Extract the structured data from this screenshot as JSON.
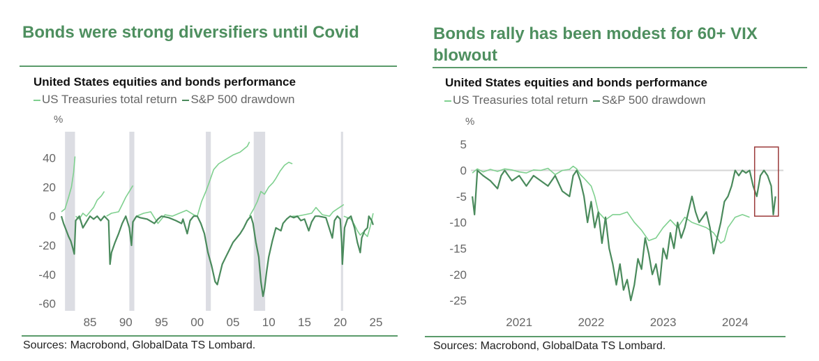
{
  "colors": {
    "headline": "#4e8f5f",
    "rule": "#5a9a6a",
    "treasuries": "#7fd08f",
    "sp500": "#4a8a5c",
    "recession": "#dcdde3",
    "zero_line": "#d6d6d6",
    "highlight_box": "#9b3a3a"
  },
  "left": {
    "headline": "Bonds were strong diversifiers until Covid",
    "chart_title": "United States equities and bonds performance",
    "legend": [
      {
        "label": "US Treasuries total return",
        "series": "treasuries"
      },
      {
        "label": "S&P 500 drawdown",
        "series": "sp500"
      }
    ],
    "unit": "%",
    "source": "Sources: Macrobond, GlobalData TS Lombard."
  },
  "right": {
    "headline": "Bonds rally has been modest for 60+ VIX blowout",
    "chart_title": "United States equities and bonds performance",
    "legend": [
      {
        "label": "US Treasuries total return",
        "series": "treasuries"
      },
      {
        "label": "S&P 500 drawdown",
        "series": "sp500"
      }
    ],
    "unit": "%",
    "source": "Sources: Macrobond, GlobalData TS Lombard."
  },
  "chart_data": [
    {
      "type": "line",
      "title": "United States equities and bonds performance",
      "ylabel": "%",
      "xlabel": "",
      "xlim": [
        1980.8,
        2025.2
      ],
      "ylim": [
        -65,
        58
      ],
      "yticks": [
        40,
        20,
        0,
        -20,
        -40,
        -60
      ],
      "xticks": [
        1985,
        1990,
        1995,
        2000,
        2005,
        2010,
        2015,
        2020,
        2025
      ],
      "xtick_labels": [
        "85",
        "90",
        "95",
        "00",
        "05",
        "10",
        "15",
        "20",
        "25"
      ],
      "legend_position": "top-left",
      "grid": false,
      "shaded_periods": [
        [
          1981.5,
          1982.9
        ],
        [
          1990.5,
          1991.2
        ],
        [
          2001.2,
          2001.9
        ],
        [
          2007.9,
          2009.5
        ],
        [
          2020.1,
          2020.4
        ]
      ],
      "series": [
        {
          "name": "US Treasuries total return",
          "key": "treasuries",
          "segments": [
            {
              "x": [
                1981.0,
                1981.5,
                1982.0,
                1982.4,
                1982.7,
                1982.9
              ],
              "y": [
                3,
                5,
                13,
                20,
                30,
                41
              ]
            },
            {
              "x": [
                1983.0,
                1983.5,
                1984.0,
                1984.5,
                1985.0,
                1985.5,
                1986.0,
                1986.6,
                1987.0
              ],
              "y": [
                0,
                -2,
                2,
                0,
                3,
                6,
                11,
                14,
                17
              ]
            },
            {
              "x": [
                1987.3,
                1988.0,
                1989.0,
                1989.5,
                1990.0,
                1990.5,
                1991.0
              ],
              "y": [
                0,
                2,
                3,
                8,
                13,
                17,
                21
              ]
            },
            {
              "x": [
                1991.5,
                1992.5,
                1993.5,
                1994.5,
                1995.5,
                1996.5,
                1997.5,
                1998.5,
                1999.5,
                2000.0
              ],
              "y": [
                0,
                2,
                3,
                -5,
                1,
                0,
                2,
                4,
                1,
                0
              ]
            },
            {
              "x": [
                2000.0,
                2000.6,
                2001.2,
                2001.8,
                2002.3,
                2003.0,
                2004.0,
                2005.0,
                2006.0,
                2007.0,
                2007.3
              ],
              "y": [
                0,
                10,
                17,
                25,
                32,
                36,
                39,
                42,
                44,
                48,
                51
              ]
            },
            {
              "x": [
                2007.3,
                2007.9,
                2008.4,
                2008.9,
                2009.4,
                2010.0,
                2010.6,
                2011.0,
                2011.6,
                2012.2,
                2012.8,
                2013.3
              ],
              "y": [
                0,
                5,
                10,
                17,
                15,
                20,
                23,
                26,
                31,
                35,
                37,
                36
              ]
            },
            {
              "x": [
                2013.3,
                2014.0,
                2015.0,
                2016.0,
                2016.6,
                2017.5,
                2018.5,
                2019.0,
                2019.6,
                2020.2,
                2020.5
              ],
              "y": [
                0,
                0,
                1,
                2,
                6,
                1,
                0,
                3,
                5,
                7,
                8
              ]
            },
            {
              "x": [
                2020.5,
                2021.0,
                2021.5,
                2022.0,
                2022.4,
                2022.8,
                2023.2,
                2023.8,
                2024.2,
                2024.6
              ],
              "y": [
                0,
                -1,
                -2,
                -6,
                -10,
                -13,
                -11,
                -14,
                -7,
                2
              ]
            }
          ]
        },
        {
          "name": "S&P 500 drawdown",
          "key": "sp500",
          "x": [
            1981.0,
            1981.3,
            1981.7,
            1982.0,
            1982.3,
            1982.6,
            1982.8,
            1983.0,
            1983.5,
            1984.0,
            1984.5,
            1985.0,
            1985.5,
            1986.0,
            1986.5,
            1987.0,
            1987.6,
            1987.8,
            1988.0,
            1988.5,
            1989.0,
            1989.5,
            1990.0,
            1990.5,
            1990.8,
            1991.0,
            1991.5,
            1992.0,
            1993.0,
            1994.0,
            1994.5,
            1995.0,
            1996.0,
            1997.0,
            1997.8,
            1998.0,
            1998.6,
            1999.0,
            1999.5,
            2000.0,
            2000.5,
            2001.0,
            2001.5,
            2002.0,
            2002.5,
            2002.8,
            2003.0,
            2003.5,
            2004.0,
            2004.5,
            2005.0,
            2006.0,
            2006.5,
            2007.0,
            2007.5,
            2007.8,
            2008.2,
            2008.6,
            2008.9,
            2009.2,
            2009.4,
            2009.7,
            2010.0,
            2010.5,
            2011.0,
            2011.7,
            2012.0,
            2012.5,
            2013.0,
            2013.5,
            2014.0,
            2014.5,
            2015.0,
            2015.6,
            2016.0,
            2016.5,
            2017.0,
            2018.0,
            2018.9,
            2019.2,
            2019.6,
            2020.0,
            2020.2,
            2020.3,
            2020.6,
            2021.0,
            2021.5,
            2022.0,
            2022.4,
            2022.8,
            2023.0,
            2023.4,
            2023.8,
            2024.0,
            2024.4,
            2024.6
          ],
          "y": [
            0,
            -5,
            -10,
            -14,
            -17,
            -22,
            -26,
            -3,
            0,
            -8,
            -4,
            0,
            -2,
            0,
            -3,
            0,
            -3,
            -33,
            -25,
            -18,
            -12,
            -5,
            0,
            -8,
            -20,
            -4,
            0,
            -1,
            -2,
            -5,
            -2,
            0,
            -1,
            -3,
            -5,
            -2,
            -12,
            -3,
            0,
            0,
            -5,
            -12,
            -25,
            -34,
            -45,
            -47,
            -43,
            -33,
            -28,
            -23,
            -18,
            -12,
            -8,
            -3,
            0,
            -5,
            -18,
            -28,
            -45,
            -55,
            -50,
            -38,
            -28,
            -17,
            -8,
            -10,
            -5,
            -2,
            0,
            -1,
            0,
            -3,
            -2,
            -10,
            -4,
            0,
            0,
            -1,
            -15,
            -3,
            0,
            -2,
            -18,
            -33,
            -8,
            -2,
            0,
            -8,
            -18,
            -25,
            -15,
            -10,
            -8,
            0,
            -3,
            -6
          ]
        }
      ]
    },
    {
      "type": "line",
      "title": "United States equities and bonds performance",
      "ylabel": "%",
      "xlabel": "",
      "xlim": [
        2020.33,
        2024.67
      ],
      "ylim": [
        -27,
        6.5
      ],
      "yticks": [
        5,
        0,
        -5,
        -10,
        -15,
        -20,
        -25
      ],
      "xticks": [
        2021,
        2022,
        2023,
        2024
      ],
      "xtick_labels": [
        "2021",
        "2022",
        "2023",
        "2024"
      ],
      "legend_position": "top-left",
      "grid": false,
      "zero_line": true,
      "highlight_box": {
        "x": [
          2024.27,
          2024.6
        ],
        "y": [
          -8.8,
          4.5
        ]
      },
      "series": [
        {
          "name": "US Treasuries total return",
          "key": "treasuries",
          "segments": [
            {
              "x": [
                2020.35,
                2020.42,
                2020.5,
                2020.6,
                2020.7,
                2020.8,
                2020.9,
                2021.0,
                2021.1,
                2021.2,
                2021.3,
                2021.4,
                2021.5,
                2021.6,
                2021.7,
                2021.75,
                2021.8,
                2021.85,
                2021.9,
                2022.0,
                2022.05,
                2022.1,
                2022.2,
                2022.3,
                2022.4,
                2022.5,
                2022.6,
                2022.7,
                2022.8,
                2022.9,
                2023.0,
                2023.1,
                2023.2,
                2023.3,
                2023.4,
                2023.5,
                2023.6,
                2023.7,
                2023.8,
                2023.85,
                2023.9,
                2024.0,
                2024.1,
                2024.2
              ],
              "y": [
                -0.5,
                0.3,
                -0.3,
                0.2,
                -0.2,
                0.3,
                0.1,
                -0.3,
                -0.5,
                0.1,
                0,
                0.4,
                -0.8,
                0,
                0.2,
                0.8,
                0.3,
                -0.8,
                -1.5,
                -3,
                -5,
                -8,
                -9.5,
                -8.5,
                -8.5,
                -8,
                -10,
                -11.5,
                -13.5,
                -13,
                -11,
                -9.5,
                -11,
                -9,
                -10,
                -10.5,
                -11,
                -12,
                -14,
                -13.5,
                -11,
                -9,
                -8.5,
                -9
              ]
            }
          ]
        },
        {
          "name": "S&P 500 drawdown",
          "key": "sp500",
          "x": [
            2020.35,
            2020.38,
            2020.42,
            2020.5,
            2020.6,
            2020.7,
            2020.75,
            2020.8,
            2020.9,
            2021.0,
            2021.1,
            2021.2,
            2021.3,
            2021.4,
            2021.5,
            2021.6,
            2021.7,
            2021.75,
            2021.8,
            2021.85,
            2021.9,
            2021.95,
            2022.0,
            2022.05,
            2022.1,
            2022.15,
            2022.2,
            2022.25,
            2022.3,
            2022.35,
            2022.4,
            2022.45,
            2022.5,
            2022.55,
            2022.6,
            2022.65,
            2022.7,
            2022.75,
            2022.8,
            2022.85,
            2022.9,
            2022.95,
            2023.0,
            2023.05,
            2023.1,
            2023.15,
            2023.2,
            2023.25,
            2023.3,
            2023.35,
            2023.4,
            2023.45,
            2023.5,
            2023.55,
            2023.6,
            2023.65,
            2023.7,
            2023.75,
            2023.8,
            2023.85,
            2023.9,
            2023.95,
            2024.0,
            2024.05,
            2024.1,
            2024.15,
            2024.2,
            2024.25,
            2024.3,
            2024.35,
            2024.4,
            2024.45,
            2024.5,
            2024.53,
            2024.56
          ],
          "y": [
            -5,
            -8.5,
            0,
            -1,
            -2,
            -3.5,
            -1,
            0,
            -2,
            -1,
            -3,
            -1,
            -2,
            -3,
            -1,
            -4,
            -5,
            -1,
            0,
            -2,
            -5,
            -10,
            -6,
            -11,
            -8,
            -14,
            -9,
            -15,
            -18,
            -22,
            -18,
            -23,
            -21,
            -25,
            -22,
            -17,
            -19,
            -13,
            -16,
            -20,
            -18,
            -22,
            -15,
            -17,
            -12,
            -15,
            -10,
            -13,
            -11,
            -8,
            -5,
            -8,
            -10,
            -9,
            -8,
            -11,
            -16,
            -13,
            -10,
            -6,
            -5,
            -3,
            0,
            -1,
            0,
            -0.5,
            0,
            -3,
            -5,
            -1,
            0,
            -1,
            -3,
            -8.5,
            -5
          ]
        }
      ]
    }
  ]
}
